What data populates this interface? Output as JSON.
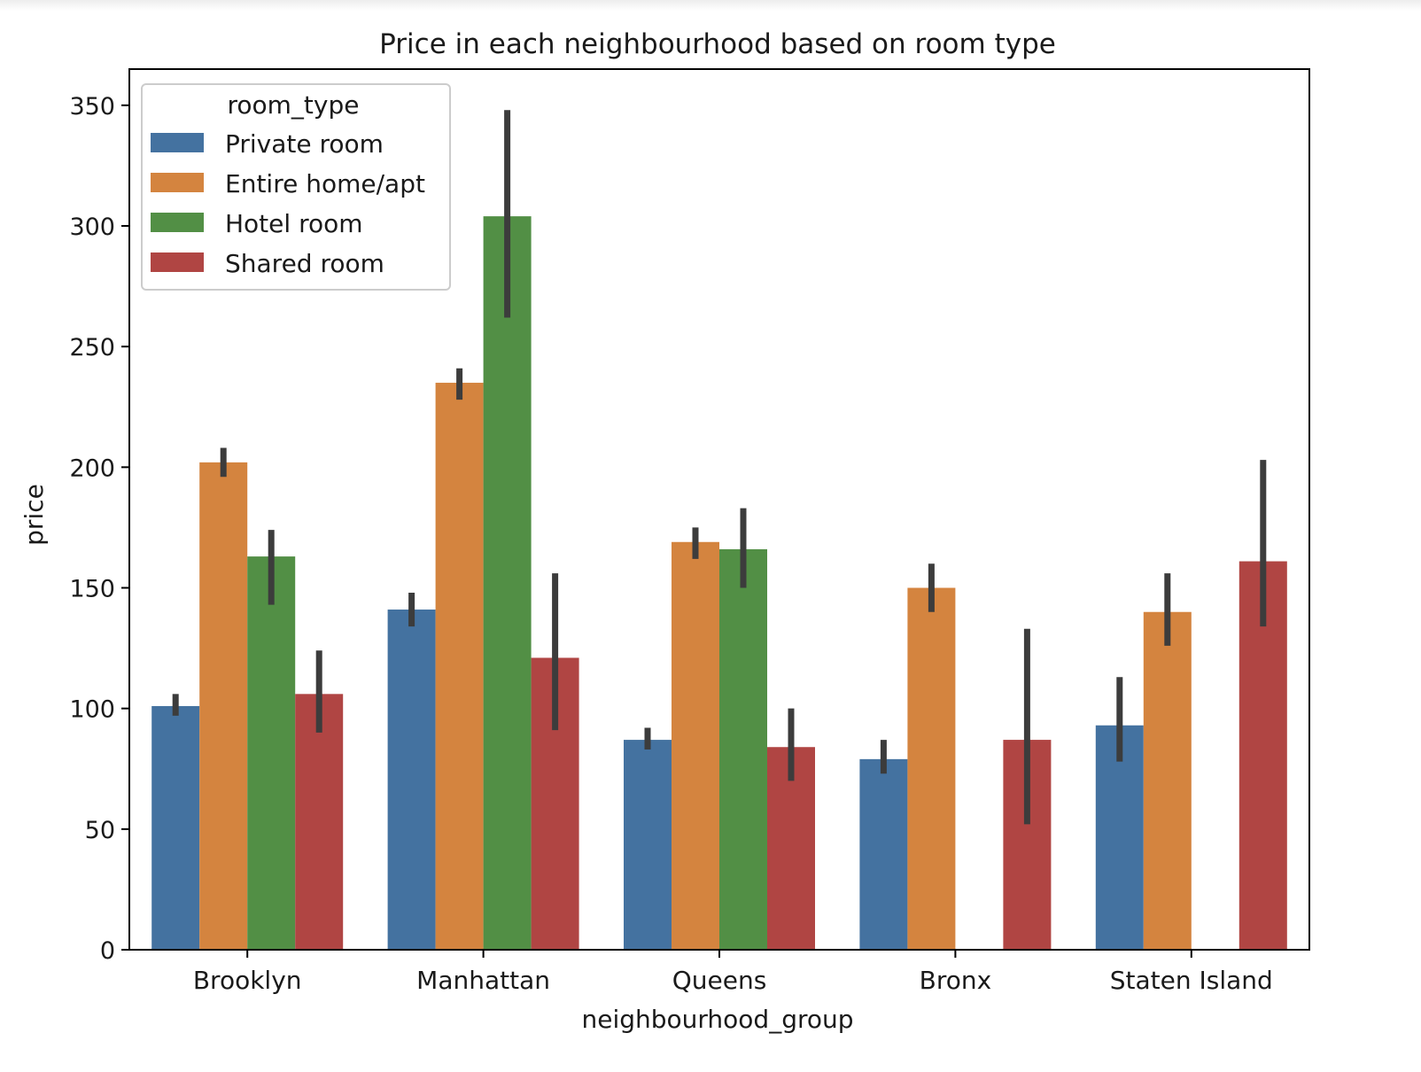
{
  "chart_data": {
    "type": "bar",
    "title": "Price in each neighbourhood based on room type",
    "xlabel": "neighbourhood_group",
    "ylabel": "price",
    "ylim": [
      0,
      365
    ],
    "yticks": [
      0,
      50,
      100,
      150,
      200,
      250,
      300,
      350
    ],
    "grid": false,
    "legend": {
      "title": "room_type",
      "placement": "upper-left"
    },
    "categories": [
      "Brooklyn",
      "Manhattan",
      "Queens",
      "Bronx",
      "Staten Island"
    ],
    "series": [
      {
        "name": "Private room",
        "color": "#4472a0",
        "values": [
          101,
          141,
          87,
          79,
          93
        ],
        "ci_low": [
          97,
          134,
          83,
          73,
          78
        ],
        "ci_high": [
          106,
          148,
          92,
          87,
          113
        ]
      },
      {
        "name": "Entire home/apt",
        "color": "#d4843f",
        "values": [
          202,
          235,
          169,
          150,
          140
        ],
        "ci_low": [
          196,
          228,
          162,
          140,
          126
        ],
        "ci_high": [
          208,
          241,
          175,
          160,
          156
        ]
      },
      {
        "name": "Hotel room",
        "color": "#528f45",
        "values": [
          163,
          304,
          166,
          null,
          null
        ],
        "ci_low": [
          143,
          262,
          150,
          null,
          null
        ],
        "ci_high": [
          174,
          348,
          183,
          null,
          null
        ]
      },
      {
        "name": "Shared room",
        "color": "#b04543",
        "values": [
          106,
          121,
          84,
          87,
          161
        ],
        "ci_low": [
          90,
          91,
          70,
          52,
          134
        ],
        "ci_high": [
          124,
          156,
          100,
          133,
          203
        ]
      }
    ]
  }
}
